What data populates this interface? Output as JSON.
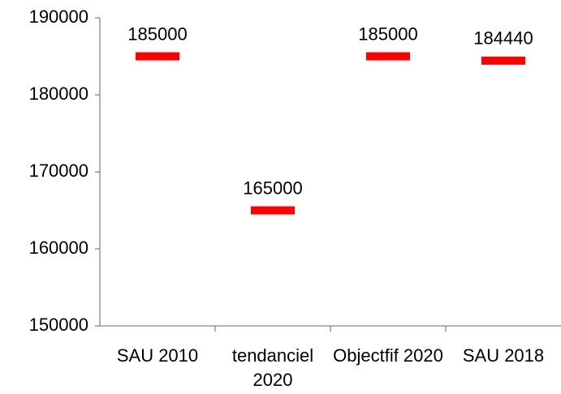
{
  "chart_data": {
    "type": "dash",
    "categories": [
      "SAU 2010",
      "tendanciel 2020",
      "Objectfif 2020",
      "SAU 2018"
    ],
    "values": [
      185000,
      165000,
      185000,
      184440
    ],
    "color": "#ff0000",
    "ylim": [
      150000,
      190000
    ],
    "yticks": [
      150000,
      160000,
      170000,
      180000,
      190000
    ],
    "grid": false
  }
}
